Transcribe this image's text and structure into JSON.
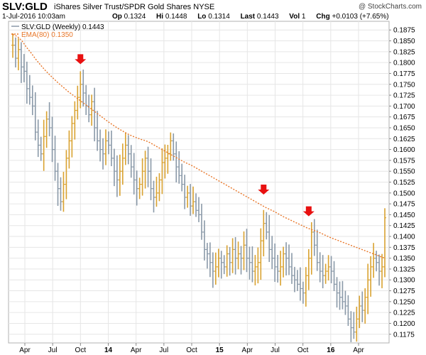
{
  "header": {
    "symbol": "SLV:GLD",
    "description": "iShares Silver Trust/SPDR Gold Shares",
    "exchange": "NYSE",
    "copyright": "@ StockCharts.com",
    "datetime": "1-Jul-2016 10:03am",
    "open_label": "Op",
    "open": "0.1324",
    "high_label": "Hi",
    "high": "0.1448",
    "low_label": "Lo",
    "low": "0.1314",
    "last_label": "Last",
    "last": "0.1443",
    "vol_label": "Vol",
    "vol": "1",
    "chg_label": "Chg",
    "chg": "+0.0103 (+7.65%)"
  },
  "legend": {
    "price_series": "SLV:GLD (Weekly) 0.1443",
    "ema_series": "EMA(80) 0.1350"
  },
  "colors": {
    "up_bar": "#d9a230",
    "down_bar": "#8a99a8",
    "ema": "#e8772a",
    "arrow": "#e81010",
    "grid": "#e6e6e6",
    "text": "#000000"
  },
  "chart_data": {
    "type": "line",
    "series_type": "weekly bars with EMA(80) overlay",
    "x_tick_labels": [
      "Apr",
      "Jul",
      "Oct",
      "14",
      "Apr",
      "Jul",
      "Oct",
      "15",
      "Apr",
      "Jul",
      "Oct",
      "16",
      "Apr"
    ],
    "y_tick_labels": [
      "0.1875",
      "0.1850",
      "0.1825",
      "0.1800",
      "0.1775",
      "0.1750",
      "0.1725",
      "0.1700",
      "0.1675",
      "0.1650",
      "0.1625",
      "0.1600",
      "0.1575",
      "0.1550",
      "0.1525",
      "0.1500",
      "0.1475",
      "0.1450",
      "0.1425",
      "0.1400",
      "0.1375",
      "0.1350",
      "0.1325",
      "0.1300",
      "0.1275",
      "0.1250",
      "0.1225",
      "0.1200",
      "0.1175"
    ],
    "ylim": [
      0.1155,
      0.1895
    ],
    "grid": true,
    "price": [
      0.184,
      0.181,
      0.183,
      0.179,
      0.178,
      0.174,
      0.172,
      0.17,
      0.164,
      0.161,
      0.159,
      0.163,
      0.167,
      0.165,
      0.16,
      0.155,
      0.151,
      0.148,
      0.152,
      0.158,
      0.162,
      0.166,
      0.169,
      0.172,
      0.175,
      0.173,
      0.17,
      0.168,
      0.171,
      0.165,
      0.162,
      0.16,
      0.159,
      0.162,
      0.161,
      0.158,
      0.155,
      0.153,
      0.155,
      0.158,
      0.161,
      0.159,
      0.156,
      0.153,
      0.151,
      0.152,
      0.155,
      0.158,
      0.155,
      0.151,
      0.149,
      0.15,
      0.153,
      0.157,
      0.158,
      0.159,
      0.162,
      0.159,
      0.156,
      0.154,
      0.152,
      0.149,
      0.15,
      0.147,
      0.148,
      0.146,
      0.145,
      0.141,
      0.137,
      0.136,
      0.134,
      0.132,
      0.133,
      0.135,
      0.134,
      0.133,
      0.136,
      0.134,
      0.137,
      0.135,
      0.136,
      0.135,
      0.138,
      0.135,
      0.134,
      0.132,
      0.133,
      0.134,
      0.139,
      0.143,
      0.141,
      0.137,
      0.135,
      0.133,
      0.132,
      0.133,
      0.136,
      0.135,
      0.133,
      0.131,
      0.13,
      0.129,
      0.128,
      0.127,
      0.131,
      0.135,
      0.141,
      0.138,
      0.134,
      0.132,
      0.131,
      0.132,
      0.133,
      0.132,
      0.129,
      0.127,
      0.126,
      0.125,
      0.124,
      0.121,
      0.119,
      0.118,
      0.121,
      0.124,
      0.123,
      0.126,
      0.13,
      0.133,
      0.135,
      0.134,
      0.132,
      0.133,
      0.1443
    ],
    "ema": [
      0.1865,
      0.186,
      0.185,
      0.1835,
      0.1822,
      0.1808,
      0.1795,
      0.1783,
      0.1772,
      0.1762,
      0.1752,
      0.1743,
      0.1734,
      0.1726,
      0.1718,
      0.171,
      0.1702,
      0.1694,
      0.1686,
      0.1678,
      0.167,
      0.1662,
      0.1655,
      0.1648,
      0.1642,
      0.1636,
      0.1631,
      0.1627,
      0.1623,
      0.162,
      0.1615,
      0.1609,
      0.1603,
      0.1597,
      0.1591,
      0.1585,
      0.1579,
      0.1573,
      0.1568,
      0.1563,
      0.1557,
      0.1551,
      0.1545,
      0.1539,
      0.1533,
      0.1527,
      0.1521,
      0.1515,
      0.1509,
      0.1503,
      0.1497,
      0.1491,
      0.1485,
      0.1479,
      0.1473,
      0.1467,
      0.1462,
      0.1457,
      0.1451,
      0.1445,
      0.144,
      0.1435,
      0.143,
      0.1425,
      0.142,
      0.1416,
      0.1412,
      0.1408,
      0.1403,
      0.1398,
      0.1394,
      0.139,
      0.1386,
      0.1382,
      0.1378,
      0.1374,
      0.137,
      0.1366,
      0.1362,
      0.1358,
      0.1354,
      0.135
    ],
    "signals": [
      {
        "bar_index": 24,
        "value": 0.178
      },
      {
        "bar_index": 89,
        "value": 0.148
      },
      {
        "bar_index": 105,
        "value": 0.143
      }
    ]
  }
}
